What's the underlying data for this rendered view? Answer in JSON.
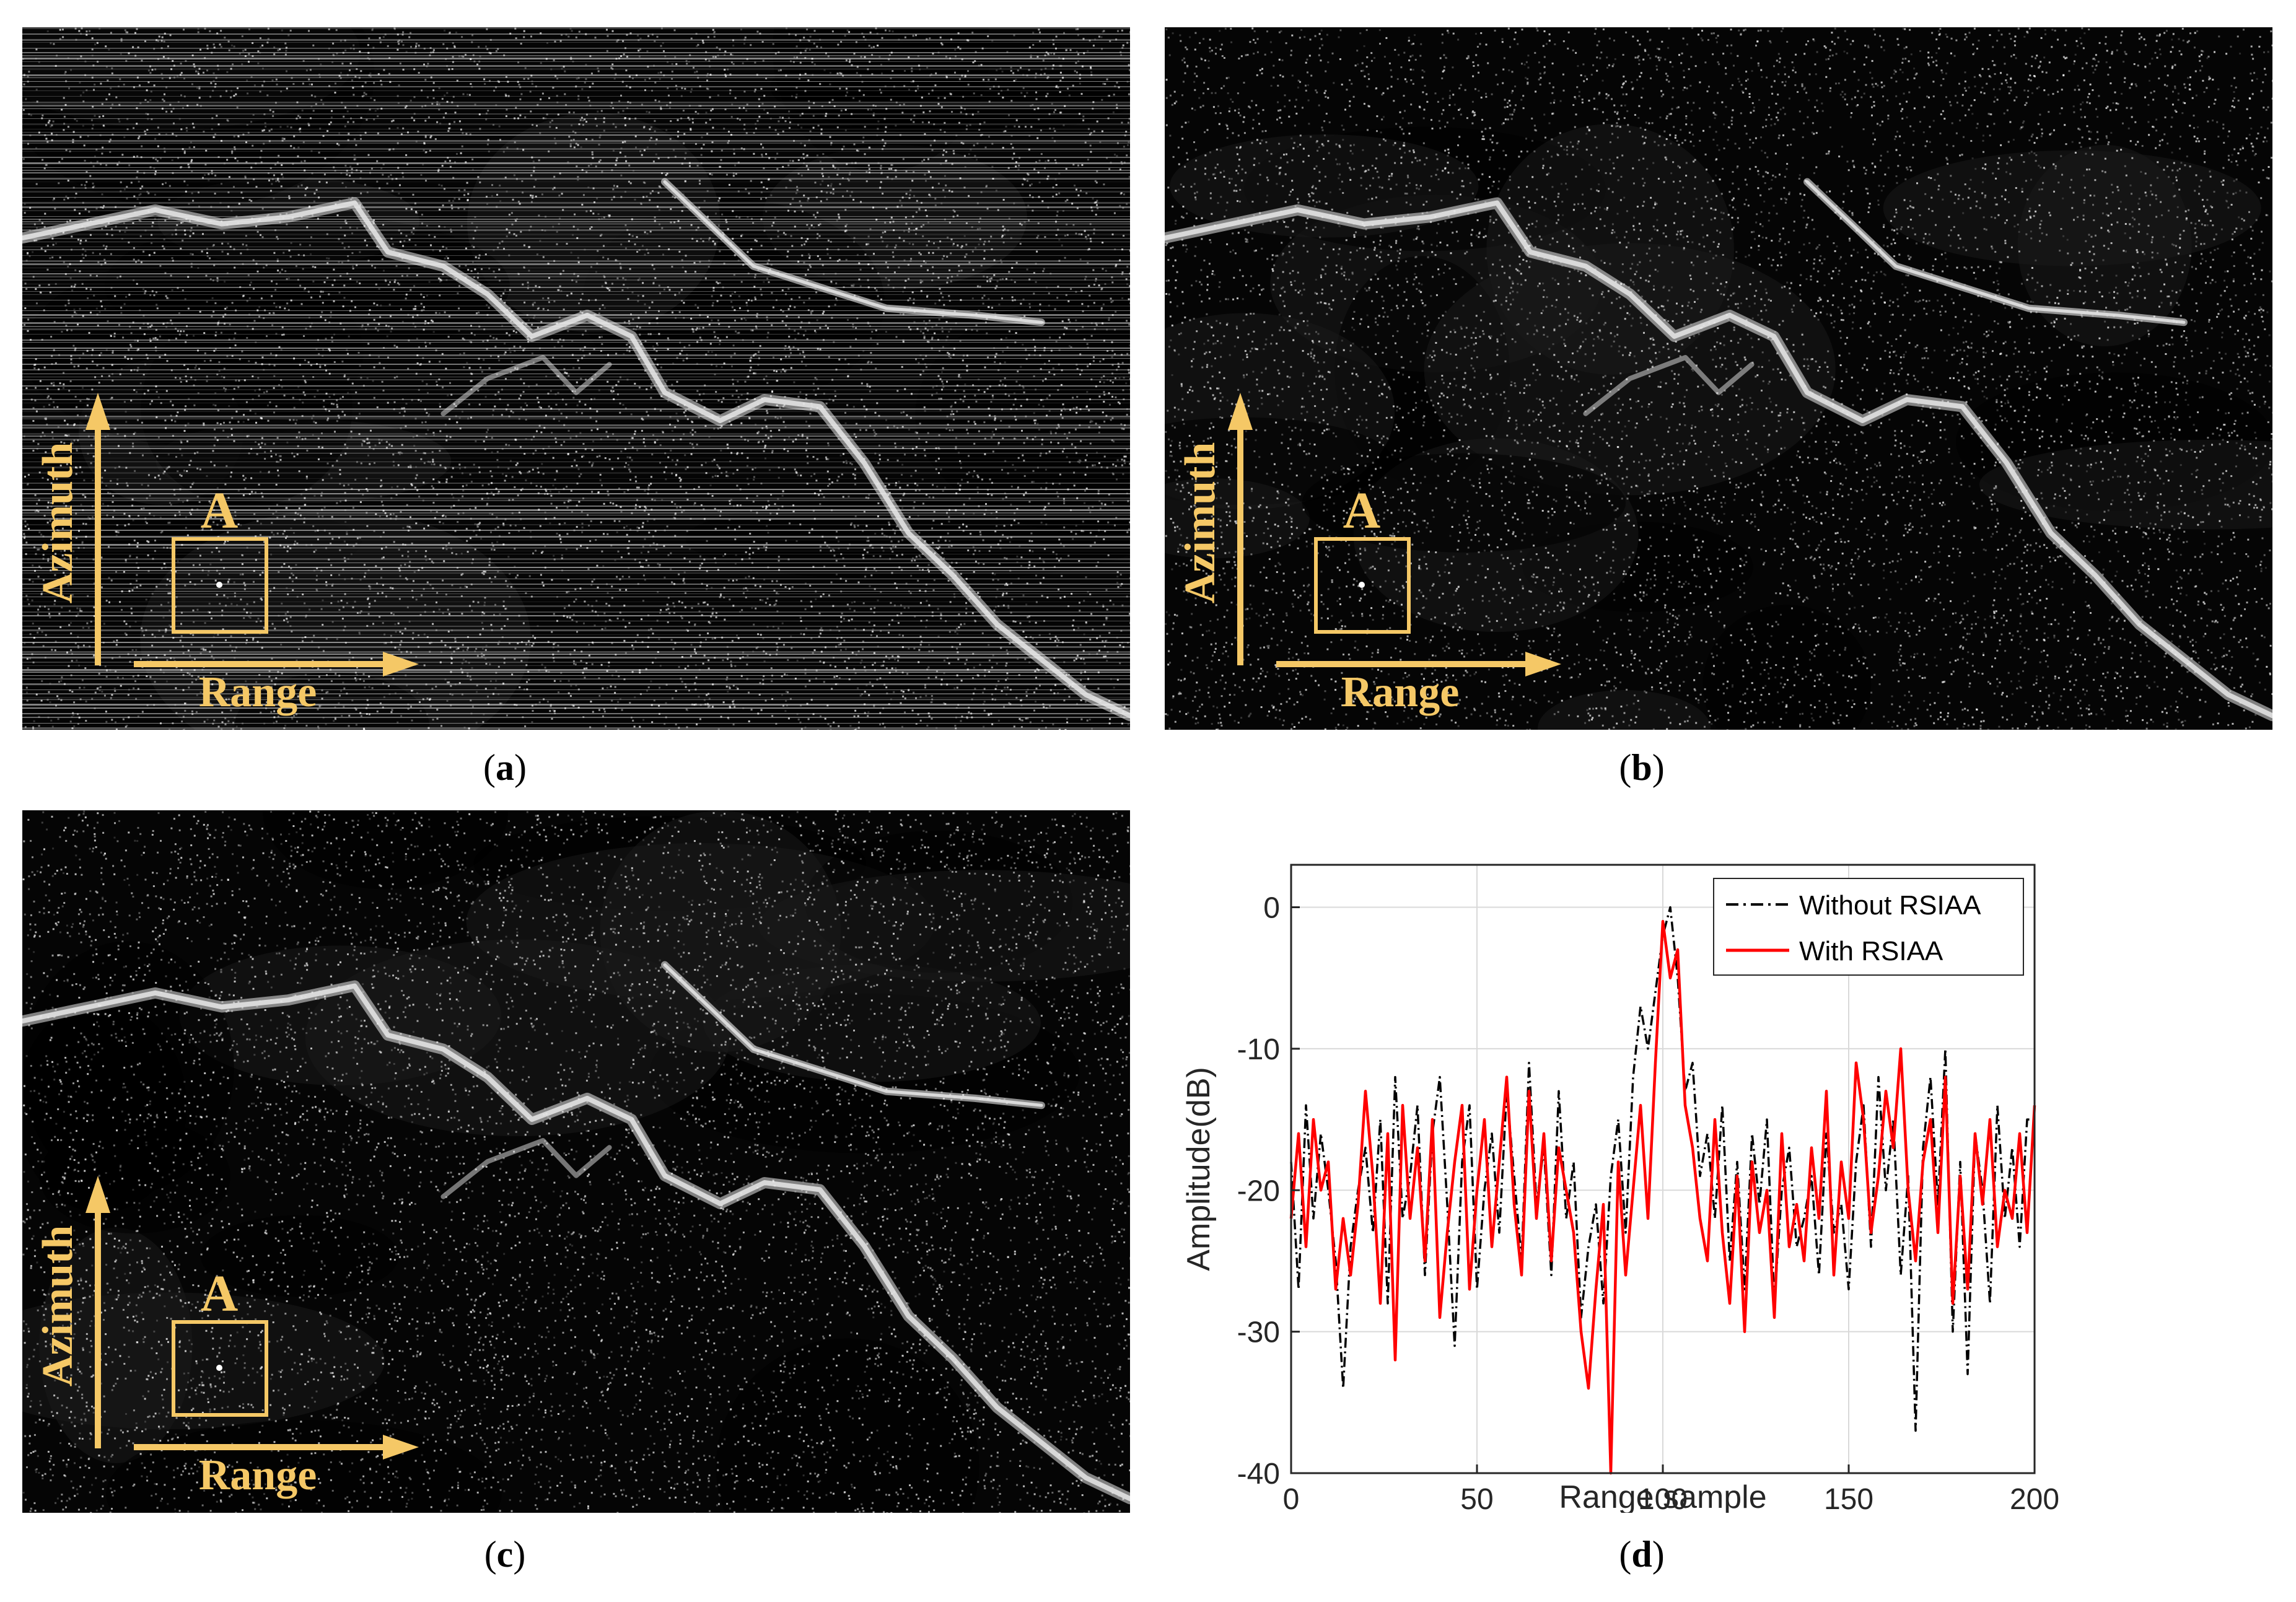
{
  "colors": {
    "annotation": "#f5c866",
    "sar_background": "#050505",
    "speckle": "#ffffff",
    "line_without": "#000000",
    "line_with": "#ff0000",
    "grid": "#d9d9d9"
  },
  "panels": [
    {
      "id": "a",
      "label_open": "(",
      "label_letter": "a",
      "label_close": ")",
      "target": "A",
      "azimuth": "Azimuth",
      "range": "Range",
      "striped": true
    },
    {
      "id": "b",
      "label_open": "(",
      "label_letter": "b",
      "label_close": ")",
      "target": "A",
      "azimuth": "Azimuth",
      "range": "Range",
      "striped": false
    },
    {
      "id": "c",
      "label_open": "(",
      "label_letter": "c",
      "label_close": ")",
      "target": "A",
      "azimuth": "Azimuth",
      "range": "Range",
      "striped": false
    }
  ],
  "panel_d": {
    "label_open": "(",
    "label_letter": "d",
    "label_close": ")"
  },
  "chart_data": {
    "type": "line",
    "xlabel": "Range sample",
    "ylabel": "Amplitude(dB)",
    "xlim": [
      0,
      200
    ],
    "ylim": [
      -40,
      3
    ],
    "xticks": [
      0,
      50,
      100,
      150,
      200
    ],
    "yticks": [
      0,
      -10,
      -20,
      -30,
      -40
    ],
    "grid": true,
    "legend_position": "top-right",
    "series": [
      {
        "name": "Without RSIAA",
        "style": "dash-dot",
        "color": "#000000",
        "x": [
          0,
          2,
          4,
          6,
          8,
          10,
          12,
          14,
          16,
          18,
          20,
          22,
          24,
          26,
          28,
          30,
          32,
          34,
          36,
          38,
          40,
          42,
          44,
          46,
          48,
          50,
          52,
          54,
          56,
          58,
          60,
          62,
          64,
          66,
          68,
          70,
          72,
          74,
          76,
          78,
          80,
          82,
          84,
          86,
          88,
          90,
          92,
          94,
          96,
          98,
          100,
          102,
          104,
          106,
          108,
          110,
          112,
          114,
          116,
          118,
          120,
          122,
          124,
          126,
          128,
          130,
          132,
          134,
          136,
          138,
          140,
          142,
          144,
          146,
          148,
          150,
          152,
          154,
          156,
          158,
          160,
          162,
          164,
          166,
          168,
          170,
          172,
          174,
          176,
          178,
          180,
          182,
          184,
          186,
          188,
          190,
          192,
          194,
          196,
          198,
          200
        ],
        "y": [
          -18,
          -27,
          -14,
          -22,
          -16,
          -20,
          -25,
          -34,
          -24,
          -20,
          -17,
          -23,
          -15,
          -28,
          -12,
          -22,
          -19,
          -14,
          -26,
          -16,
          -12,
          -21,
          -31,
          -18,
          -14,
          -27,
          -20,
          -16,
          -23,
          -13,
          -19,
          -25,
          -11,
          -21,
          -17,
          -26,
          -13,
          -22,
          -18,
          -29,
          -24,
          -21,
          -28,
          -19,
          -15,
          -23,
          -12,
          -7,
          -10,
          -6,
          -2,
          0,
          -5,
          -13,
          -11,
          -19,
          -16,
          -22,
          -14,
          -25,
          -18,
          -27,
          -16,
          -21,
          -15,
          -28,
          -20,
          -17,
          -24,
          -22,
          -19,
          -26,
          -16,
          -23,
          -21,
          -27,
          -18,
          -14,
          -24,
          -12,
          -20,
          -15,
          -26,
          -19,
          -37,
          -17,
          -12,
          -21,
          -10,
          -30,
          -18,
          -33,
          -16,
          -20,
          -28,
          -14,
          -22,
          -17,
          -24,
          -15,
          -15
        ]
      },
      {
        "name": "With RSIAA",
        "style": "solid",
        "color": "#ff0000",
        "x": [
          0,
          2,
          4,
          6,
          8,
          10,
          12,
          14,
          16,
          18,
          20,
          22,
          24,
          26,
          28,
          30,
          32,
          34,
          36,
          38,
          40,
          42,
          44,
          46,
          48,
          50,
          52,
          54,
          56,
          58,
          60,
          62,
          64,
          66,
          68,
          70,
          72,
          74,
          76,
          78,
          80,
          82,
          84,
          86,
          88,
          90,
          92,
          94,
          96,
          98,
          100,
          102,
          104,
          106,
          108,
          110,
          112,
          114,
          116,
          118,
          120,
          122,
          124,
          126,
          128,
          130,
          132,
          134,
          136,
          138,
          140,
          142,
          144,
          146,
          148,
          150,
          152,
          154,
          156,
          158,
          160,
          162,
          164,
          166,
          168,
          170,
          172,
          174,
          176,
          178,
          180,
          182,
          184,
          186,
          188,
          190,
          192,
          194,
          196,
          198,
          200
        ],
        "y": [
          -22,
          -16,
          -24,
          -15,
          -20,
          -18,
          -27,
          -22,
          -26,
          -21,
          -13,
          -19,
          -28,
          -16,
          -32,
          -14,
          -22,
          -17,
          -25,
          -15,
          -29,
          -23,
          -18,
          -14,
          -27,
          -20,
          -15,
          -24,
          -18,
          -12,
          -21,
          -26,
          -13,
          -22,
          -16,
          -25,
          -17,
          -20,
          -23,
          -30,
          -34,
          -27,
          -21,
          -40,
          -18,
          -26,
          -20,
          -14,
          -22,
          -11,
          -1,
          -5,
          -3,
          -14,
          -17,
          -22,
          -25,
          -15,
          -23,
          -28,
          -19,
          -30,
          -18,
          -23,
          -20,
          -29,
          -16,
          -24,
          -21,
          -25,
          -17,
          -22,
          -13,
          -26,
          -18,
          -22,
          -11,
          -15,
          -23,
          -19,
          -13,
          -17,
          -10,
          -20,
          -25,
          -18,
          -15,
          -23,
          -12,
          -28,
          -19,
          -27,
          -16,
          -21,
          -15,
          -24,
          -20,
          -22,
          -16,
          -23,
          -14
        ]
      }
    ]
  }
}
